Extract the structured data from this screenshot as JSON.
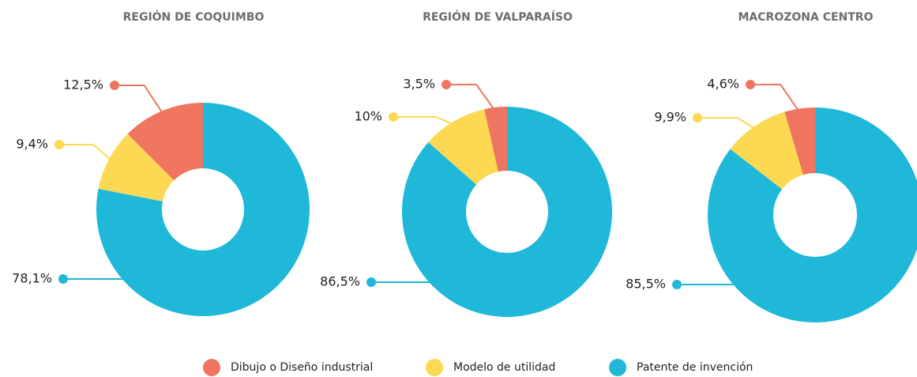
{
  "chart_data": [
    {
      "type": "pie",
      "title": "REGIÓN DE COQUIMBO",
      "categories": [
        "Dibujo o Diseño industrial",
        "Modelo de utilidad",
        "Patente de invención"
      ],
      "values": [
        12.5,
        9.4,
        78.1
      ],
      "value_labels": [
        "12,5%",
        "9,4%",
        "78,1%"
      ],
      "colors": [
        "#ef7560",
        "#fcd853",
        "#1fb8d9"
      ]
    },
    {
      "type": "pie",
      "title": "REGIÓN DE VALPARAÍSO",
      "categories": [
        "Dibujo o Diseño industrial",
        "Modelo de utilidad",
        "Patente de invención"
      ],
      "values": [
        3.5,
        10,
        86.5
      ],
      "value_labels": [
        "3,5%",
        "10%",
        "86,5%"
      ],
      "colors": [
        "#ef7560",
        "#fcd853",
        "#1fb8d9"
      ]
    },
    {
      "type": "pie",
      "title": "MACROZONA CENTRO",
      "categories": [
        "Dibujo o Diseño industrial",
        "Modelo de utilidad",
        "Patente de invención"
      ],
      "values": [
        4.6,
        9.9,
        85.5
      ],
      "value_labels": [
        "4,6%",
        "9,9%",
        "85,5%"
      ],
      "colors": [
        "#ef7560",
        "#fcd853",
        "#1fb8d9"
      ]
    }
  ]
}
